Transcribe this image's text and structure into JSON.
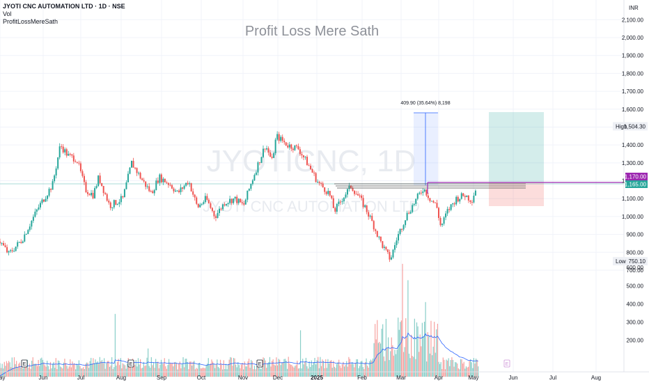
{
  "header": {
    "symbol_title": "JYOTI CNC AUTOMATION LTD · 1D · NSE",
    "volume_label": "Vol",
    "indicator_label": "ProfitLossMereSath"
  },
  "watermark": {
    "title": "Profit Loss Mere Sath",
    "symbol": "JYOTICNC, 1D",
    "company": "JYOTI CNC AUTOMATION LTD"
  },
  "price_scale": {
    "currency": "INR",
    "high_label": "High",
    "low_label": "Low"
  },
  "chart_data": {
    "type": "candlestick",
    "interval": "1D",
    "x_labels": [
      "May",
      "Jun",
      "Jul",
      "Aug",
      "Sep",
      "Oct",
      "Nov",
      "Dec",
      "2025",
      "Feb",
      "Mar",
      "Apr",
      "May",
      "Jun",
      "Jul",
      "Aug"
    ],
    "price_ticks": [
      "700.00",
      "800.00",
      "900.00",
      "1,000.00",
      "1,100.00",
      "1,200.00",
      "1,300.00",
      "1,400.00",
      "1,500.00",
      "1,600.00",
      "1,700.00",
      "1,800.00",
      "1,900.00",
      "2,000.00",
      "2,100.00"
    ],
    "volume_ticks": [
      "200.00",
      "300.00",
      "400.00",
      "500.00",
      "600.00"
    ],
    "price_range": [
      700,
      2150
    ],
    "volume_range": [
      0,
      650
    ],
    "high_value": "1,504.30",
    "low_value": "750.10",
    "price_labels": [
      "1,170.00",
      "1,165.00"
    ],
    "measure_label": "409.90 (35.64%) 8,198",
    "earnings_markers": [
      "E",
      "E",
      "E",
      "E"
    ],
    "price_series": [
      {
        "d": 0,
        "c": 860
      },
      {
        "d": 8,
        "c": 790
      },
      {
        "d": 20,
        "c": 870
      },
      {
        "d": 35,
        "c": 1050
      },
      {
        "d": 48,
        "c": 1180
      },
      {
        "d": 55,
        "c": 1400
      },
      {
        "d": 62,
        "c": 1340
      },
      {
        "d": 70,
        "c": 1320
      },
      {
        "d": 78,
        "c": 1150
      },
      {
        "d": 85,
        "c": 1120
      },
      {
        "d": 90,
        "c": 1220
      },
      {
        "d": 100,
        "c": 1060
      },
      {
        "d": 112,
        "c": 1100
      },
      {
        "d": 120,
        "c": 1300
      },
      {
        "d": 130,
        "c": 1200
      },
      {
        "d": 138,
        "c": 1130
      },
      {
        "d": 145,
        "c": 1220
      },
      {
        "d": 155,
        "c": 1180
      },
      {
        "d": 162,
        "c": 1130
      },
      {
        "d": 172,
        "c": 1200
      },
      {
        "d": 180,
        "c": 1050
      },
      {
        "d": 188,
        "c": 1100
      },
      {
        "d": 196,
        "c": 1000
      },
      {
        "d": 205,
        "c": 1080
      },
      {
        "d": 214,
        "c": 1100
      },
      {
        "d": 222,
        "c": 1060
      },
      {
        "d": 232,
        "c": 1240
      },
      {
        "d": 242,
        "c": 1400
      },
      {
        "d": 248,
        "c": 1310
      },
      {
        "d": 252,
        "c": 1450
      },
      {
        "d": 262,
        "c": 1400
      },
      {
        "d": 272,
        "c": 1380
      },
      {
        "d": 280,
        "c": 1300
      },
      {
        "d": 290,
        "c": 1190
      },
      {
        "d": 300,
        "c": 1130
      },
      {
        "d": 305,
        "c": 1030
      },
      {
        "d": 312,
        "c": 1100
      },
      {
        "d": 320,
        "c": 1170
      },
      {
        "d": 326,
        "c": 1120
      },
      {
        "d": 333,
        "c": 1050
      },
      {
        "d": 340,
        "c": 960
      },
      {
        "d": 346,
        "c": 870
      },
      {
        "d": 352,
        "c": 800
      },
      {
        "d": 356,
        "c": 760
      },
      {
        "d": 362,
        "c": 880
      },
      {
        "d": 370,
        "c": 1000
      },
      {
        "d": 380,
        "c": 1100
      },
      {
        "d": 386,
        "c": 1160
      },
      {
        "d": 392,
        "c": 1100
      },
      {
        "d": 398,
        "c": 1060
      },
      {
        "d": 402,
        "c": 940
      },
      {
        "d": 408,
        "c": 1030
      },
      {
        "d": 416,
        "c": 1100
      },
      {
        "d": 424,
        "c": 1120
      },
      {
        "d": 430,
        "c": 1090
      },
      {
        "d": 434,
        "c": 1160
      }
    ]
  },
  "colors": {
    "up": "#26a69a",
    "down": "#ef5350",
    "support_line": "#4a4a4a",
    "resistance": "#9c27b0",
    "ma_line": "#2962ff",
    "target_zone": "#26a69a",
    "stop_zone": "#ef5350",
    "measure_zone": "#2962ff"
  }
}
